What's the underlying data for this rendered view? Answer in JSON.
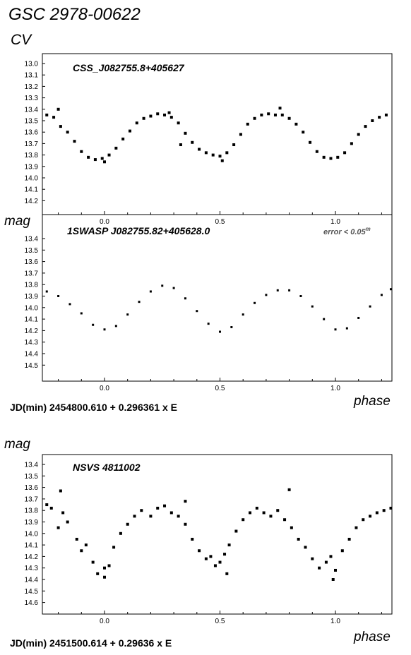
{
  "header": {
    "title": "GSC 2978-00622",
    "subtitle": "CV"
  },
  "labels": {
    "mag_upper": "mag",
    "mag_lower": "mag",
    "phase_upper": "phase",
    "phase_lower": "phase",
    "ephemeris_upper": "JD(min) 2454800.610  + 0.296361 x E",
    "ephemeris_lower": "JD(min) 2451500.614  + 0.29636 x E",
    "error_note": "error < 0.05",
    "error_sup": "m"
  },
  "colors": {
    "points": "#000000",
    "frame": "#000000",
    "background": "#ffffff",
    "error_text": "#555555"
  },
  "chart_data": [
    {
      "type": "scatter",
      "title": "CSS_J082755.8+405627",
      "xlabel": "phase",
      "ylabel": "mag",
      "xlim": [
        -0.26,
        1.25
      ],
      "ylim": [
        13.0,
        14.3
      ],
      "y_inverted": true,
      "x_ticks": [
        "0.0",
        "0.5",
        "1.0"
      ],
      "y_ticks": [
        "13.0",
        "13.1",
        "13.2",
        "13.3",
        "13.4",
        "13.5",
        "13.6",
        "13.7",
        "13.8",
        "13.9",
        "14.0",
        "14.1",
        "14.2"
      ],
      "grid": false,
      "marker": "square",
      "series": [
        {
          "x": [
            -0.25,
            -0.22,
            -0.19,
            -0.16,
            -0.13,
            -0.1,
            -0.07,
            -0.04,
            -0.01,
            0.02,
            0.05,
            0.08,
            0.11,
            0.14,
            0.17,
            0.2,
            0.23,
            0.26,
            0.29,
            0.32,
            0.35,
            0.38,
            0.41,
            0.44,
            0.47,
            0.5,
            0.53,
            0.56,
            0.59,
            0.62,
            0.65,
            0.68,
            0.71,
            0.74,
            0.77,
            0.8,
            0.83,
            0.86,
            0.89,
            0.92,
            0.95,
            0.98,
            1.01,
            1.04,
            1.07,
            1.1,
            1.13,
            1.16,
            1.19,
            1.22,
            -0.2,
            0.0,
            0.28,
            0.76,
            0.33,
            0.51
          ],
          "y": [
            13.45,
            13.47,
            13.55,
            13.6,
            13.68,
            13.77,
            13.82,
            13.84,
            13.83,
            13.8,
            13.74,
            13.66,
            13.59,
            13.52,
            13.48,
            13.46,
            13.44,
            13.45,
            13.47,
            13.52,
            13.61,
            13.69,
            13.75,
            13.78,
            13.8,
            13.81,
            13.78,
            13.71,
            13.62,
            13.53,
            13.48,
            13.45,
            13.44,
            13.45,
            13.45,
            13.48,
            13.53,
            13.6,
            13.69,
            13.77,
            13.82,
            13.83,
            13.82,
            13.78,
            13.7,
            13.62,
            13.55,
            13.5,
            13.47,
            13.45,
            13.4,
            13.86,
            13.43,
            13.39,
            13.71,
            13.85
          ]
        }
      ]
    },
    {
      "type": "scatter",
      "title": "1SWASP J082755.82+405628.0",
      "xlabel": "phase",
      "ylabel": "mag",
      "xlim": [
        -0.26,
        1.25
      ],
      "ylim": [
        13.3,
        14.6
      ],
      "y_inverted": true,
      "x_ticks": [
        "0.0",
        "0.5",
        "1.0"
      ],
      "y_ticks": [
        "13.4",
        "13.5",
        "13.6",
        "13.7",
        "13.8",
        "13.9",
        "14.0",
        "14.1",
        "14.2",
        "14.3",
        "14.4",
        "14.5"
      ],
      "grid": false,
      "marker": "dot",
      "series": [
        {
          "x": [
            -0.25,
            -0.2,
            -0.15,
            -0.1,
            -0.05,
            0.0,
            0.05,
            0.1,
            0.15,
            0.2,
            0.25,
            0.3,
            0.35,
            0.4,
            0.45,
            0.5,
            0.55,
            0.6,
            0.65,
            0.7,
            0.75,
            0.8,
            0.85,
            0.9,
            0.95,
            1.0,
            1.05,
            1.1,
            1.15,
            1.2,
            1.24
          ],
          "y": [
            13.86,
            13.9,
            13.97,
            14.05,
            14.15,
            14.19,
            14.16,
            14.06,
            13.95,
            13.86,
            13.81,
            13.83,
            13.92,
            14.03,
            14.14,
            14.21,
            14.17,
            14.06,
            13.96,
            13.89,
            13.85,
            13.85,
            13.9,
            13.99,
            14.1,
            14.19,
            14.18,
            14.09,
            13.99,
            13.89,
            13.84
          ]
        }
      ]
    },
    {
      "type": "scatter",
      "title": "NSVS 4811002",
      "xlabel": "phase",
      "ylabel": "mag",
      "xlim": [
        -0.26,
        1.25
      ],
      "ylim": [
        13.3,
        14.7
      ],
      "y_inverted": true,
      "x_ticks": [
        "0.0",
        "0.5",
        "1.0"
      ],
      "y_ticks": [
        "13.4",
        "13.5",
        "13.6",
        "13.7",
        "13.8",
        "13.9",
        "14.0",
        "14.1",
        "14.2",
        "14.3",
        "14.4",
        "14.5",
        "14.6"
      ],
      "grid": false,
      "marker": "square",
      "series": [
        {
          "x": [
            -0.25,
            -0.23,
            -0.2,
            -0.18,
            -0.16,
            -0.12,
            -0.1,
            -0.08,
            -0.05,
            -0.03,
            0.0,
            0.02,
            0.04,
            0.07,
            0.1,
            0.13,
            0.16,
            0.2,
            0.23,
            0.26,
            0.29,
            0.32,
            0.35,
            0.38,
            0.41,
            0.44,
            0.46,
            0.48,
            0.5,
            0.52,
            0.54,
            0.57,
            0.6,
            0.63,
            0.66,
            0.69,
            0.72,
            0.75,
            0.78,
            0.81,
            0.84,
            0.87,
            0.9,
            0.93,
            0.96,
            0.98,
            1.0,
            1.03,
            1.06,
            1.09,
            1.12,
            1.15,
            1.18,
            1.21,
            1.24,
            -0.19,
            0.0,
            0.35,
            0.53,
            0.8,
            0.99
          ],
          "y": [
            13.75,
            13.78,
            13.95,
            13.82,
            13.9,
            14.05,
            14.15,
            14.1,
            14.25,
            14.35,
            14.3,
            14.28,
            14.12,
            14.0,
            13.92,
            13.85,
            13.8,
            13.85,
            13.78,
            13.76,
            13.82,
            13.85,
            13.92,
            14.05,
            14.15,
            14.22,
            14.2,
            14.28,
            14.25,
            14.18,
            14.1,
            13.98,
            13.88,
            13.82,
            13.78,
            13.82,
            13.85,
            13.8,
            13.88,
            13.95,
            14.05,
            14.12,
            14.22,
            14.3,
            14.25,
            14.2,
            14.32,
            14.15,
            14.05,
            13.95,
            13.88,
            13.85,
            13.82,
            13.8,
            13.78,
            13.63,
            14.38,
            13.72,
            14.35,
            13.62,
            14.4
          ]
        }
      ]
    }
  ]
}
